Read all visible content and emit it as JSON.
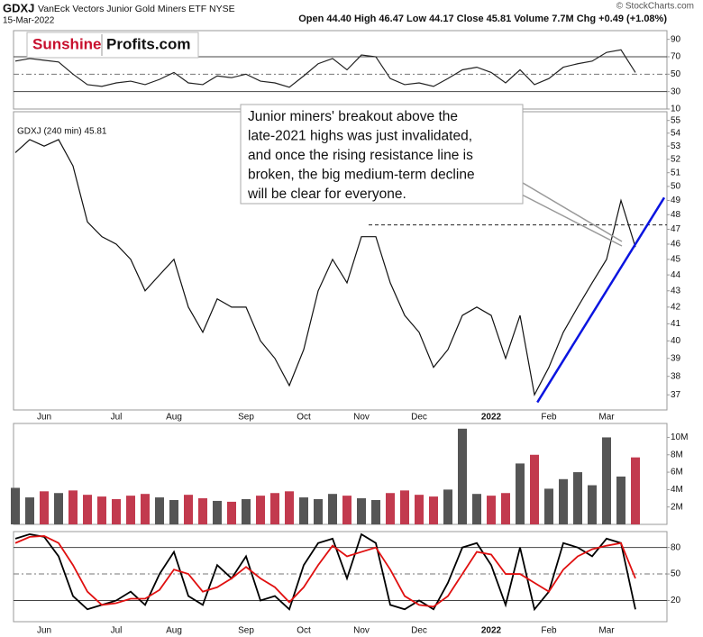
{
  "header": {
    "symbol": "GDXJ",
    "description": "VanEck Vectors Junior Gold Miners ETF  NYSE",
    "date": "15-Mar-2022",
    "stats": "Open 44.40  High 46.47  Low 44.17  Close 45.81  Volume 7.7M  Chg +0.49 (+1.08%)",
    "copyright": "© StockCharts.com"
  },
  "logo": {
    "brand": "Sunshine",
    "domain": "Profits.com"
  },
  "chart_data": [
    {
      "type": "line",
      "legend_label": "GDXJ (240 min) 45.81",
      "log_scale": true,
      "annotation": [
        "Junior miners' breakout above the",
        "late-2021 highs was just invalidated,",
        "and once the rising resistance line is",
        "broken, the big medium-term decline",
        "will be clear for everyone."
      ],
      "categories": [
        null,
        null,
        "Jun",
        null,
        null,
        null,
        null,
        "Jul",
        null,
        null,
        null,
        "Aug",
        null,
        null,
        null,
        null,
        "Sep",
        null,
        null,
        null,
        "Oct",
        null,
        null,
        null,
        "Nov",
        null,
        null,
        null,
        "Dec",
        null,
        null,
        null,
        null,
        "2022",
        null,
        null,
        null,
        "Feb",
        null,
        null,
        null,
        "Mar",
        null,
        null
      ],
      "series": [
        {
          "name": "GDXJ",
          "color": "#111111",
          "values": [
            52.5,
            53.5,
            53.0,
            53.5,
            51.5,
            47.5,
            46.5,
            46.0,
            45.0,
            43.0,
            44.0,
            45.0,
            42.0,
            40.5,
            42.5,
            42.0,
            42.0,
            40.0,
            39.0,
            37.5,
            39.5,
            43.0,
            45.0,
            43.5,
            46.5,
            46.5,
            43.5,
            41.5,
            40.5,
            38.5,
            39.5,
            41.5,
            42.0,
            41.5,
            39.0,
            41.5,
            37.0,
            38.5,
            40.5,
            42.0,
            43.5,
            45.0,
            49.0,
            45.81
          ]
        }
      ],
      "resistance_level": 47.3,
      "trend_line": {
        "x": [
          36.2,
          45
        ],
        "y": [
          36.6,
          49.2
        ],
        "color": "#0a14e0"
      },
      "ylim": [
        36.2,
        55.7
      ],
      "yticks": [
        37,
        38,
        39,
        40,
        41,
        42,
        43,
        44,
        45,
        46,
        47,
        48,
        49,
        50,
        51,
        52,
        53,
        54,
        55
      ]
    },
    {
      "type": "line",
      "series": [
        {
          "color": "#222222",
          "values": [
            65,
            68,
            66,
            64,
            50,
            38,
            36,
            40,
            42,
            38,
            44,
            52,
            40,
            38,
            48,
            46,
            50,
            42,
            40,
            35,
            48,
            62,
            68,
            55,
            72,
            70,
            45,
            38,
            40,
            36,
            45,
            55,
            58,
            52,
            40,
            55,
            38,
            45,
            58,
            62,
            65,
            75,
            78,
            52
          ]
        }
      ],
      "ylim": [
        10,
        100
      ],
      "yticks": [
        10,
        30,
        50,
        70,
        90
      ],
      "levels": [
        30,
        50,
        70
      ]
    },
    {
      "type": "bar",
      "up_color": "#555555",
      "down_color": "#c23a4e",
      "values": [
        4200000,
        3100000,
        3800000,
        3600000,
        3900000,
        3400000,
        3200000,
        2900000,
        3300000,
        3500000,
        3100000,
        2800000,
        3400000,
        3000000,
        2700000,
        2600000,
        2900000,
        3300000,
        3600000,
        3800000,
        3100000,
        2900000,
        3500000,
        3300000,
        3000000,
        2800000,
        3600000,
        3900000,
        3400000,
        3200000,
        4000000,
        11000000,
        3500000,
        3300000,
        3600000,
        7000000,
        8000000,
        4100000,
        5200000,
        6000000,
        4500000,
        10000000,
        5500000,
        7700000
      ],
      "ylim": [
        0,
        11600000
      ],
      "yticks": [
        {
          "value": 2000000,
          "label": "2M"
        },
        {
          "value": 4000000,
          "label": "4M"
        },
        {
          "value": 6000000,
          "label": "6M"
        },
        {
          "value": 8000000,
          "label": "8M"
        },
        {
          "value": 10000000,
          "label": "10M"
        }
      ]
    },
    {
      "type": "line",
      "series": [
        {
          "color": "#000000",
          "values": [
            90,
            95,
            92,
            70,
            25,
            10,
            15,
            20,
            30,
            15,
            50,
            75,
            25,
            15,
            60,
            45,
            70,
            20,
            25,
            10,
            60,
            85,
            90,
            45,
            95,
            85,
            15,
            10,
            20,
            10,
            40,
            80,
            85,
            60,
            15,
            80,
            10,
            30,
            85,
            80,
            70,
            90,
            85,
            10
          ]
        },
        {
          "color": "#e01010",
          "values": [
            85,
            92,
            93,
            85,
            60,
            30,
            15,
            17,
            22,
            22,
            32,
            55,
            50,
            30,
            35,
            45,
            58,
            45,
            35,
            18,
            35,
            60,
            82,
            70,
            75,
            80,
            55,
            25,
            15,
            13,
            25,
            50,
            75,
            72,
            50,
            50,
            40,
            30,
            55,
            70,
            78,
            82,
            85,
            45
          ]
        }
      ],
      "ylim": [
        -4,
        98
      ],
      "yticks": [
        20,
        50,
        80
      ],
      "levels": [
        20,
        50,
        80
      ]
    }
  ]
}
